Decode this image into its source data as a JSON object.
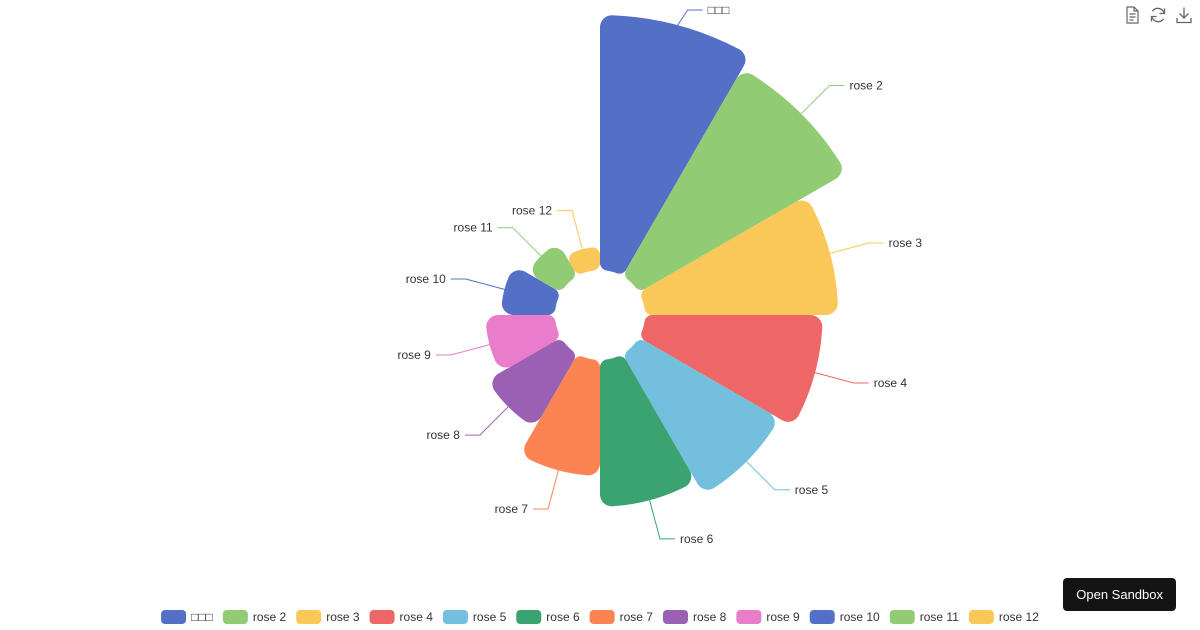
{
  "chart_data": {
    "type": "pie",
    "variant": "nightingale-rose",
    "title": "",
    "series": [
      {
        "name": "□□□",
        "value": 40,
        "color": "#5470c6"
      },
      {
        "name": "rose 2",
        "value": 38,
        "color": "#91cc75"
      },
      {
        "name": "rose 3",
        "value": 32,
        "color": "#fac858"
      },
      {
        "name": "rose 4",
        "value": 30,
        "color": "#ee6666"
      },
      {
        "name": "rose 5",
        "value": 28,
        "color": "#73c0de"
      },
      {
        "name": "rose 6",
        "value": 26,
        "color": "#3ba272"
      },
      {
        "name": "rose 7",
        "value": 22,
        "color": "#fc8452"
      },
      {
        "name": "rose 8",
        "value": 18,
        "color": "#9a60b4"
      },
      {
        "name": "rose 9",
        "value": 16,
        "color": "#ea7ccc"
      },
      {
        "name": "rose 10",
        "value": 14,
        "color": "#5470c6"
      },
      {
        "name": "rose 11",
        "value": 12,
        "color": "#91cc75"
      },
      {
        "name": "rose 12",
        "value": 10,
        "color": "#fac858"
      }
    ],
    "legend_position": "bottom"
  },
  "toolbox": {
    "items": [
      {
        "name": "data-view-icon"
      },
      {
        "name": "restore-icon"
      },
      {
        "name": "save-image-icon"
      }
    ]
  },
  "sandbox_label": "Open Sandbox"
}
